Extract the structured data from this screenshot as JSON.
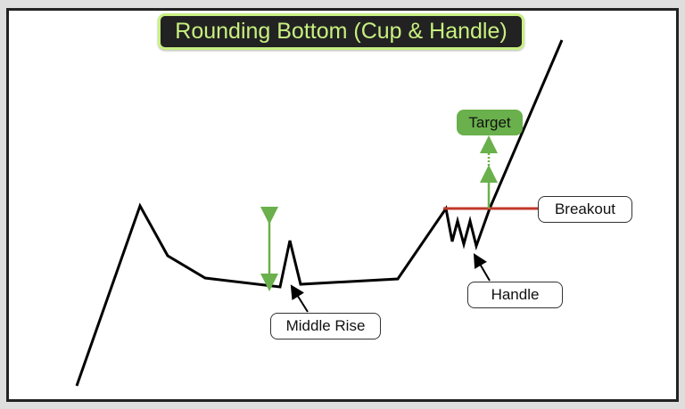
{
  "title": "Rounding Bottom (Cup & Handle)",
  "labels": {
    "target": "Target",
    "breakout": "Breakout",
    "handle": "Handle",
    "middle_rise": "Middle Rise"
  },
  "colors": {
    "title_text": "#c8f080",
    "title_bg": "#222222",
    "arrow_green": "#6ab04c",
    "breakout_line": "#c0392b",
    "price_line": "#000000"
  }
}
